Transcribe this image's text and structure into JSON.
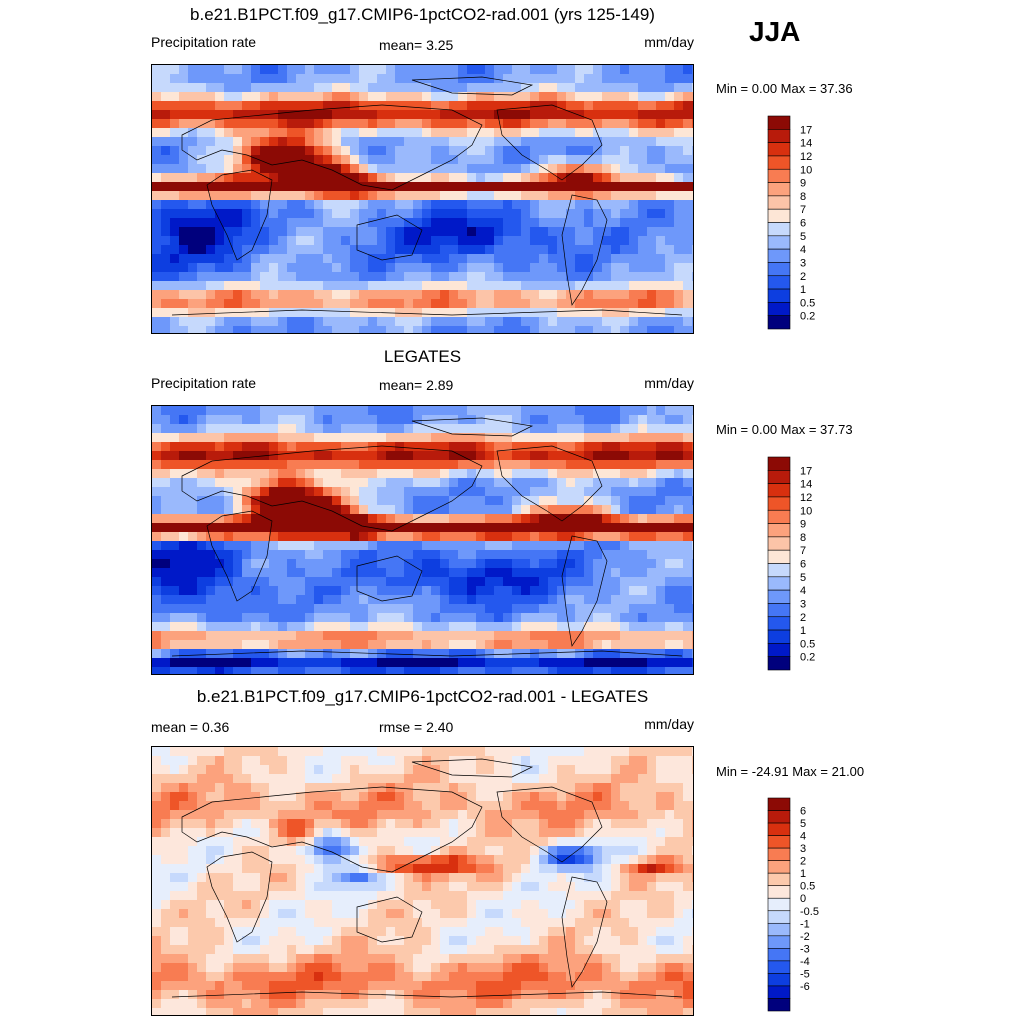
{
  "season": "JJA",
  "colors": {
    "precip": [
      "#00007d",
      "#0019c8",
      "#0d3ee0",
      "#2458ee",
      "#4576f5",
      "#6e98fa",
      "#9ab9fc",
      "#c6d9fc",
      "#fde6d6",
      "#fcc4a8",
      "#fca27d",
      "#f87c52",
      "#ee5528",
      "#d8300f",
      "#b81b0b",
      "#8c0a05"
    ],
    "diff": [
      "#00007d",
      "#0019c8",
      "#0d3ee0",
      "#2458ee",
      "#4576f5",
      "#6e98fa",
      "#9ab9fc",
      "#c6d9fc",
      "#e6eefc",
      "#fde7dc",
      "#fcc9ac",
      "#fca27d",
      "#f87c52",
      "#ee5528",
      "#d8300f",
      "#b81b0b",
      "#8c0a05"
    ]
  },
  "panels": [
    {
      "title": "b.e21.B1PCT.f09_g17.CMIP6-1pctCO2-rad.001 (yrs 125-149)",
      "left_label": "Precipitation rate",
      "center_label": "mean=   3.25",
      "units": "mm/day",
      "minmax": "Min =   0.00 Max =  37.36"
    },
    {
      "title": "LEGATES",
      "left_label": "Precipitation rate",
      "center_label": "mean=   2.89",
      "units": "mm/day",
      "minmax": "Min =   0.00 Max =  37.73"
    },
    {
      "title": "b.e21.B1PCT.f09_g17.CMIP6-1pctCO2-rad.001 - LEGATES",
      "left_label": "mean =   0.36",
      "center_label": "rmse =   2.40",
      "units": "mm/day",
      "minmax": "Min = -24.91 Max =  21.00"
    }
  ],
  "chart_data": [
    {
      "type": "heatmap",
      "title": "b.e21.B1PCT.f09_g17.CMIP6-1pctCO2-rad.001 (yrs 125-149)",
      "variable": "Precipitation rate",
      "units": "mm/day",
      "mean": 3.25,
      "min": 0.0,
      "max": 37.36,
      "colorbar_levels": [
        "0.2",
        "0.5",
        "1",
        "2",
        "3",
        "4",
        "5",
        "6",
        "7",
        "8",
        "9",
        "10",
        "12",
        "14",
        "17"
      ]
    },
    {
      "type": "heatmap",
      "title": "LEGATES",
      "variable": "Precipitation rate",
      "units": "mm/day",
      "mean": 2.89,
      "min": 0.0,
      "max": 37.73,
      "colorbar_levels": [
        "0.2",
        "0.5",
        "1",
        "2",
        "3",
        "4",
        "5",
        "6",
        "7",
        "8",
        "9",
        "10",
        "12",
        "14",
        "17"
      ]
    },
    {
      "type": "heatmap",
      "title": "b.e21.B1PCT.f09_g17.CMIP6-1pctCO2-rad.001 - LEGATES",
      "units": "mm/day",
      "mean": 0.36,
      "rmse": 2.4,
      "min": -24.91,
      "max": 21.0,
      "colorbar_levels": [
        "-6",
        "-5",
        "-4",
        "-3",
        "-2",
        "-1",
        "-0.5",
        "0",
        "0.5",
        "1",
        "2",
        "3",
        "4",
        "5",
        "6"
      ]
    }
  ]
}
